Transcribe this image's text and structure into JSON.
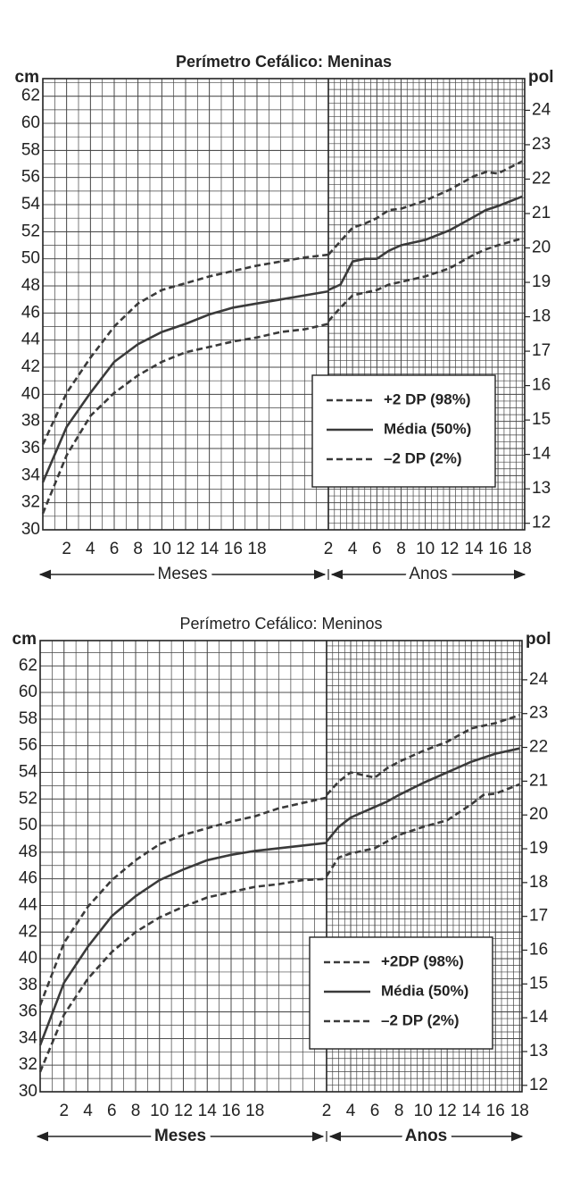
{
  "chart_data": [
    {
      "type": "line",
      "title": "Perímetro Cefálico: Meninas",
      "y_label": "cm",
      "y2_label": "pol",
      "x_sections": [
        "Meses",
        "Anos"
      ],
      "x_months": [
        0,
        2,
        4,
        6,
        8,
        10,
        12,
        14,
        16,
        18,
        20,
        22,
        24
      ],
      "x_years": [
        2,
        3,
        4,
        5,
        6,
        7,
        8,
        10,
        12,
        14,
        15,
        16,
        18
      ],
      "xlim_months": [
        0,
        24
      ],
      "xlim_years": [
        2,
        18.2
      ],
      "xticks_months": [
        2,
        4,
        6,
        8,
        10,
        12,
        14,
        16,
        18
      ],
      "xticks_years": [
        2,
        4,
        6,
        8,
        10,
        12,
        14,
        16,
        18
      ],
      "ylim": [
        30,
        63.3
      ],
      "yticks": [
        30,
        32,
        34,
        36,
        38,
        40,
        42,
        44,
        46,
        48,
        50,
        52,
        54,
        56,
        58,
        60,
        62
      ],
      "y2lim": [
        11.81,
        24.92
      ],
      "y2ticks": [
        12,
        13,
        14,
        15,
        16,
        17,
        18,
        19,
        20,
        21,
        22,
        23,
        24
      ],
      "grid": true,
      "legend": "lower right",
      "series": [
        {
          "name": "+2 DP (98%)",
          "color": "#3a3a3a",
          "style": "dashed",
          "values_months": [
            36.3,
            40.1,
            42.7,
            45.0,
            46.7,
            47.7,
            48.2,
            48.7,
            49.1,
            49.5,
            49.8,
            50.1,
            50.3
          ],
          "values_years": [
            50.3,
            51.3,
            52.3,
            52.6,
            53.0,
            53.6,
            53.7,
            54.3,
            55.1,
            56.1,
            56.4,
            56.3,
            57.2
          ]
        },
        {
          "name": "Média (50%)",
          "color": "#3a3a3a",
          "style": "solid",
          "values_months": [
            33.5,
            37.6,
            40.1,
            42.4,
            43.7,
            44.6,
            45.2,
            45.9,
            46.4,
            46.7,
            47.0,
            47.3,
            47.6
          ],
          "values_years": [
            47.7,
            48.1,
            49.8,
            50.0,
            50.0,
            50.6,
            51.0,
            51.4,
            52.1,
            53.1,
            53.6,
            53.9,
            54.6
          ]
        },
        {
          "name": "–2 DP (2%)",
          "color": "#3a3a3a",
          "style": "dashed",
          "values_months": [
            31.2,
            35.5,
            38.4,
            40.1,
            41.4,
            42.4,
            43.1,
            43.5,
            43.9,
            44.2,
            44.6,
            44.8,
            45.2
          ],
          "values_years": [
            45.4,
            46.4,
            47.3,
            47.5,
            47.7,
            48.1,
            48.3,
            48.7,
            49.3,
            50.3,
            50.7,
            51.0,
            51.5
          ]
        }
      ]
    },
    {
      "type": "line",
      "title": "Perímetro Cefálico: Meninos",
      "y_label": "cm",
      "y2_label": "pol",
      "x_sections": [
        "Meses",
        "Anos"
      ],
      "x_months": [
        0,
        2,
        4,
        6,
        8,
        10,
        12,
        14,
        16,
        18,
        20,
        22,
        24
      ],
      "x_years": [
        2,
        3,
        4,
        6,
        7,
        8,
        10,
        12,
        14,
        15,
        16,
        18
      ],
      "xlim_months": [
        0,
        24
      ],
      "xlim_years": [
        2,
        18.2
      ],
      "xticks_months": [
        2,
        4,
        6,
        8,
        10,
        12,
        14,
        16,
        18
      ],
      "xticks_years": [
        2,
        4,
        6,
        8,
        10,
        12,
        14,
        16,
        18
      ],
      "ylim": [
        30,
        63.9
      ],
      "yticks": [
        30,
        32,
        34,
        36,
        38,
        40,
        42,
        44,
        46,
        48,
        50,
        52,
        54,
        56,
        58,
        60,
        62
      ],
      "y2lim": [
        11.81,
        25.16
      ],
      "y2ticks": [
        12,
        13,
        14,
        15,
        16,
        17,
        18,
        19,
        20,
        21,
        22,
        23,
        24
      ],
      "grid": true,
      "legend": "lower right",
      "series": [
        {
          "name": "+2DP (98%)",
          "color": "#3a3a3a",
          "style": "dashed",
          "values_months": [
            36.5,
            41.2,
            43.9,
            45.9,
            47.4,
            48.6,
            49.3,
            49.8,
            50.3,
            50.7,
            51.3,
            51.7,
            52.1
          ],
          "values_years": [
            52.3,
            53.3,
            54.0,
            53.6,
            54.3,
            54.8,
            55.6,
            56.3,
            57.3,
            57.5,
            57.7,
            58.3
          ]
        },
        {
          "name": "Média (50%)",
          "color": "#3a3a3a",
          "style": "solid",
          "values_months": [
            33.5,
            38.2,
            40.9,
            43.2,
            44.7,
            45.9,
            46.7,
            47.4,
            47.8,
            48.1,
            48.3,
            48.5,
            48.7
          ],
          "values_years": [
            48.8,
            49.9,
            50.6,
            51.4,
            51.8,
            52.3,
            53.2,
            54.0,
            54.8,
            55.1,
            55.4,
            55.8
          ]
        },
        {
          "name": "–2 DP (2%)",
          "color": "#3a3a3a",
          "style": "dashed",
          "values_months": [
            31.5,
            35.8,
            38.5,
            40.5,
            42.0,
            43.1,
            43.9,
            44.6,
            45.0,
            45.4,
            45.6,
            45.9,
            46.0
          ],
          "values_years": [
            46.2,
            47.6,
            47.9,
            48.3,
            48.8,
            49.3,
            49.9,
            50.4,
            51.6,
            52.3,
            52.4,
            53.1
          ]
        }
      ]
    }
  ]
}
